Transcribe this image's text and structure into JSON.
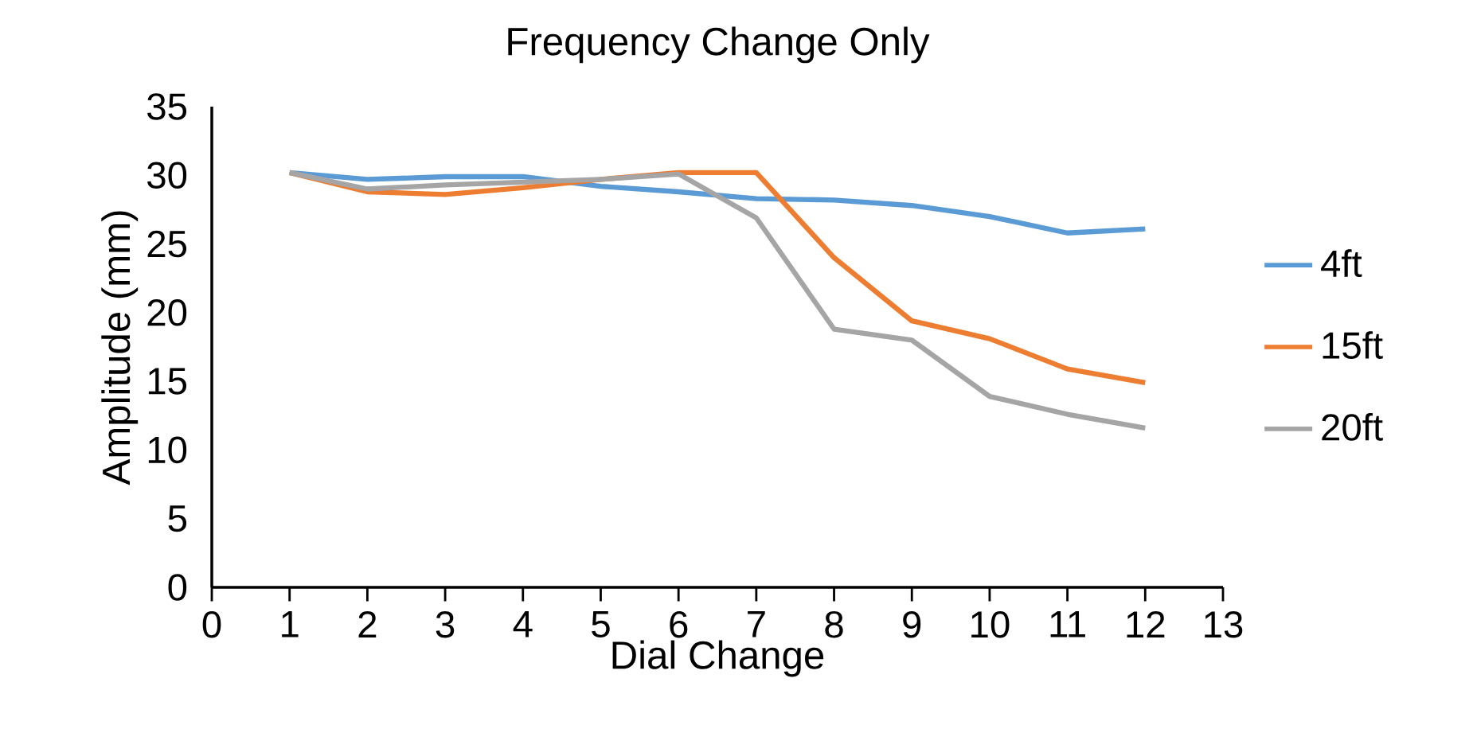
{
  "chart_data": {
    "type": "line",
    "title": "Frequency Change Only",
    "xlabel": "Dial Change",
    "ylabel": "Amplitude (mm)",
    "x": [
      1,
      2,
      3,
      4,
      5,
      6,
      7,
      8,
      9,
      10,
      11,
      12
    ],
    "series": [
      {
        "name": "4ft",
        "color": "#5b9bd5",
        "values": [
          30.2,
          29.7,
          29.9,
          29.9,
          29.2,
          28.8,
          28.3,
          28.2,
          27.8,
          27.0,
          25.8,
          26.1
        ]
      },
      {
        "name": "15ft",
        "color": "#ed7d31",
        "values": [
          30.2,
          28.8,
          28.6,
          29.1,
          29.7,
          30.2,
          30.2,
          24.0,
          19.4,
          18.1,
          15.9,
          14.9
        ]
      },
      {
        "name": "20ft",
        "color": "#a5a5a5",
        "values": [
          30.2,
          29.0,
          29.3,
          29.5,
          29.7,
          30.1,
          26.9,
          18.8,
          18.0,
          13.9,
          12.6,
          11.6
        ]
      }
    ],
    "xlim": [
      0,
      13
    ],
    "xticks": [
      0,
      1,
      2,
      3,
      4,
      5,
      6,
      7,
      8,
      9,
      10,
      11,
      12,
      13
    ],
    "ylim": [
      0,
      35
    ],
    "yticks": [
      0,
      5,
      10,
      15,
      20,
      25,
      30,
      35
    ],
    "grid": false,
    "legend": "right",
    "marker": "none",
    "line_style": "solid"
  }
}
